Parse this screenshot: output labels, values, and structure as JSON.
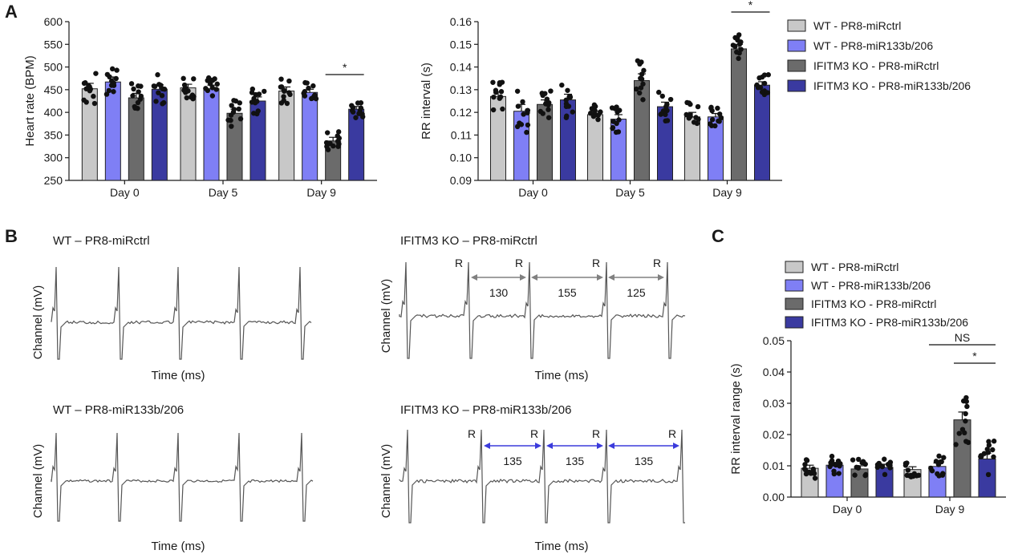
{
  "panel_labels": {
    "a": "A",
    "b": "B",
    "c": "C"
  },
  "legend": {
    "wt_ctrl": "WT - PR8-miRctrl",
    "wt_mir": "WT - PR8-miR133b/206",
    "ko_ctrl": "IFITM3 KO - PR8-miRctrl",
    "ko_mir": "IFITM3 KO - PR8-miR133b/206"
  },
  "colors": {
    "wt_ctrl": "#c8c8c8",
    "wt_mir": "#7f7ff5",
    "ko_ctrl": "#6b6b6b",
    "ko_mir": "#3a3aa0",
    "arrow_gray": "#808080",
    "arrow_blue": "#3b3bdc"
  },
  "chart_data": [
    {
      "id": "heart_rate",
      "type": "bar",
      "ylabel": "Heart rate (BPM)",
      "ylim": [
        250,
        600
      ],
      "yticks": [
        "250",
        "300",
        "350",
        "400",
        "450",
        "500",
        "550",
        "600"
      ],
      "categories": [
        "Day 0",
        "Day 5",
        "Day 9"
      ],
      "series": [
        {
          "name": "WT - PR8-miRctrl",
          "values": [
            452,
            454,
            447
          ],
          "sem": [
            12,
            8,
            9
          ]
        },
        {
          "name": "WT - PR8-miR133b/206",
          "values": [
            467,
            452,
            444
          ],
          "sem": [
            11,
            8,
            7
          ]
        },
        {
          "name": "IFITM3 KO - PR8-miRctrl",
          "values": [
            432,
            398,
            337
          ],
          "sem": [
            10,
            9,
            8
          ]
        },
        {
          "name": "IFITM3 KO - PR8-miR133b/206",
          "values": [
            451,
            425,
            407
          ],
          "sem": [
            10,
            9,
            6
          ]
        }
      ],
      "significance": [
        {
          "label": "*",
          "category": "Day 9",
          "from_series": 2,
          "to_series": 3
        }
      ]
    },
    {
      "id": "rr_interval",
      "type": "bar",
      "ylabel": "RR interval (s)",
      "ylim": [
        0.09,
        0.16
      ],
      "yticks": [
        "0.09",
        "0.10",
        "0.11",
        "0.12",
        "0.13",
        "0.14",
        "0.15",
        "0.16"
      ],
      "categories": [
        "Day 0",
        "Day 5",
        "Day 9"
      ],
      "series": [
        {
          "name": "WT - PR8-miRctrl",
          "values": [
            0.127,
            0.119,
            0.118
          ],
          "sem": [
            0.002,
            0.0015,
            0.002
          ]
        },
        {
          "name": "WT - PR8-miR133b/206",
          "values": [
            0.1205,
            0.117,
            0.118
          ],
          "sem": [
            0.003,
            0.002,
            0.0015
          ]
        },
        {
          "name": "IFITM3 KO - PR8-miRctrl",
          "values": [
            0.1235,
            0.134,
            0.148
          ],
          "sem": [
            0.002,
            0.003,
            0.002
          ]
        },
        {
          "name": "IFITM3 KO - PR8-miR133b/206",
          "values": [
            0.1255,
            0.1225,
            0.132
          ],
          "sem": [
            0.0025,
            0.002,
            0.0015
          ]
        }
      ],
      "significance": [
        {
          "label": "*",
          "category": "Day 9",
          "from_series": 2,
          "to_series": 3
        }
      ]
    },
    {
      "id": "rr_range",
      "type": "bar",
      "ylabel": "RR interval range (s)",
      "ylim": [
        0,
        0.05
      ],
      "yticks": [
        "0.00",
        "0.01",
        "0.02",
        "0.03",
        "0.04",
        "0.05"
      ],
      "categories": [
        "Day 0",
        "Day 9"
      ],
      "series": [
        {
          "name": "WT - PR8-miRctrl",
          "values": [
            0.0092,
            0.0088
          ],
          "sem": [
            0.001,
            0.0009
          ]
        },
        {
          "name": "WT - PR8-miR133b/206",
          "values": [
            0.0102,
            0.0098
          ],
          "sem": [
            0.0009,
            0.0011
          ]
        },
        {
          "name": "IFITM3 KO - PR8-miRctrl",
          "values": [
            0.009,
            0.0247
          ],
          "sem": [
            0.001,
            0.0025
          ]
        },
        {
          "name": "IFITM3 KO - PR8-miR133b/206",
          "values": [
            0.0095,
            0.0122
          ],
          "sem": [
            0.001,
            0.0018
          ]
        }
      ],
      "significance": [
        {
          "label": "NS",
          "category": "Day 9",
          "from_series": 1,
          "to_series": 3
        },
        {
          "label": "*",
          "category": "Day 9",
          "from_series": 2,
          "to_series": 3
        }
      ]
    }
  ],
  "ecg": [
    {
      "title": "WT – PR8-miRctrl",
      "ylabel": "Channel (mV)",
      "xlabel": "Time (ms)",
      "beats": 5,
      "r_label": "",
      "intervals": []
    },
    {
      "title": "IFITM3 KO – PR8-miRctrl",
      "ylabel": "Channel (mV)",
      "xlabel": "Time (ms)",
      "beats": 5,
      "r_label": "R",
      "intervals": [
        "130",
        "155",
        "125"
      ]
    },
    {
      "title": "WT – PR8-miR133b/206",
      "ylabel": "Channel (mV)",
      "xlabel": "Time (ms)",
      "beats": 5,
      "r_label": "",
      "intervals": []
    },
    {
      "title": "IFITM3 KO – PR8-miR133b/206",
      "ylabel": "Channel (mV)",
      "xlabel": "Time (ms)",
      "beats": 5,
      "r_label": "R",
      "intervals": [
        "135",
        "135",
        "135"
      ]
    }
  ]
}
